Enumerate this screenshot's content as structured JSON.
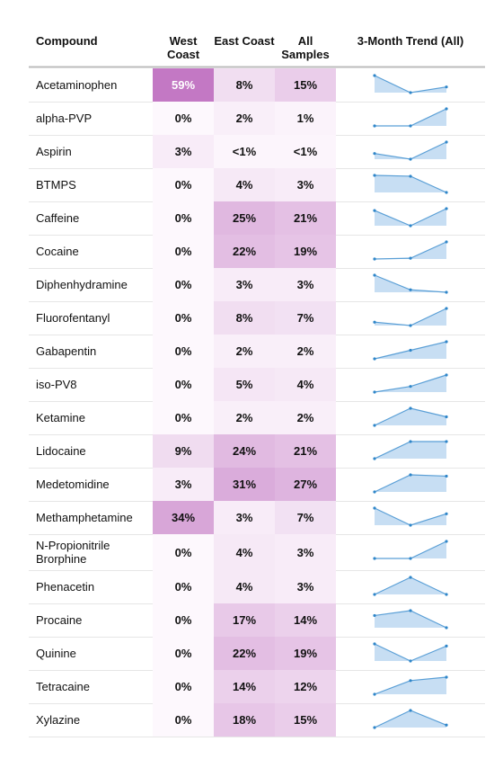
{
  "table": {
    "header": [
      "Compound",
      "West Coast",
      "East Coast",
      "All Samples",
      "3-Month Trend (All)"
    ],
    "rows": [
      {
        "compound": "Acetaminophen",
        "cells": [
          {
            "value": 59,
            "label": "59%"
          },
          {
            "value": 8,
            "label": "8%"
          },
          {
            "value": 15,
            "label": "15%"
          }
        ],
        "trend": [
          20,
          11,
          14
        ]
      },
      {
        "compound": "alpha-PVP",
        "cells": [
          {
            "value": 0,
            "label": "0%"
          },
          {
            "value": 2,
            "label": "2%"
          },
          {
            "value": 1,
            "label": "1%"
          }
        ],
        "trend": [
          0,
          0,
          3
        ]
      },
      {
        "compound": "Aspirin",
        "cells": [
          {
            "value": 3,
            "label": "3%"
          },
          {
            "value": 0.5,
            "label": "<1%"
          },
          {
            "value": 0.5,
            "label": "<1%"
          }
        ],
        "trend": [
          0.4,
          0.2,
          0.8
        ]
      },
      {
        "compound": "BTMPS",
        "cells": [
          {
            "value": 0,
            "label": "0%"
          },
          {
            "value": 4,
            "label": "4%"
          },
          {
            "value": 3,
            "label": "3%"
          }
        ],
        "trend": [
          5,
          4.8,
          1
        ]
      },
      {
        "compound": "Caffeine",
        "cells": [
          {
            "value": 0,
            "label": "0%"
          },
          {
            "value": 25,
            "label": "25%"
          },
          {
            "value": 21,
            "label": "21%"
          }
        ],
        "trend": [
          23,
          15,
          24
        ]
      },
      {
        "compound": "Cocaine",
        "cells": [
          {
            "value": 0,
            "label": "0%"
          },
          {
            "value": 22,
            "label": "22%"
          },
          {
            "value": 19,
            "label": "19%"
          }
        ],
        "trend": [
          14,
          14.5,
          25
        ]
      },
      {
        "compound": "Diphenhydramine",
        "cells": [
          {
            "value": 0,
            "label": "0%"
          },
          {
            "value": 3,
            "label": "3%"
          },
          {
            "value": 3,
            "label": "3%"
          }
        ],
        "trend": [
          5,
          2,
          1.5
        ]
      },
      {
        "compound": "Fluorofentanyl",
        "cells": [
          {
            "value": 0,
            "label": "0%"
          },
          {
            "value": 8,
            "label": "8%"
          },
          {
            "value": 7,
            "label": "7%"
          }
        ],
        "trend": [
          6,
          5,
          10
        ]
      },
      {
        "compound": "Gabapentin",
        "cells": [
          {
            "value": 0,
            "label": "0%"
          },
          {
            "value": 2,
            "label": "2%"
          },
          {
            "value": 2,
            "label": "2%"
          }
        ],
        "trend": [
          1,
          2,
          3
        ]
      },
      {
        "compound": "iso-PV8",
        "cells": [
          {
            "value": 0,
            "label": "0%"
          },
          {
            "value": 5,
            "label": "5%"
          },
          {
            "value": 4,
            "label": "4%"
          }
        ],
        "trend": [
          2,
          3,
          5
        ]
      },
      {
        "compound": "Ketamine",
        "cells": [
          {
            "value": 0,
            "label": "0%"
          },
          {
            "value": 2,
            "label": "2%"
          },
          {
            "value": 2,
            "label": "2%"
          }
        ],
        "trend": [
          1,
          3,
          2
        ]
      },
      {
        "compound": "Lidocaine",
        "cells": [
          {
            "value": 9,
            "label": "9%"
          },
          {
            "value": 24,
            "label": "24%"
          },
          {
            "value": 21,
            "label": "21%"
          }
        ],
        "trend": [
          15,
          24,
          24
        ]
      },
      {
        "compound": "Medetomidine",
        "cells": [
          {
            "value": 3,
            "label": "3%"
          },
          {
            "value": 31,
            "label": "31%"
          },
          {
            "value": 27,
            "label": "27%"
          }
        ],
        "trend": [
          18,
          31,
          30
        ]
      },
      {
        "compound": "Methamphetamine",
        "cells": [
          {
            "value": 34,
            "label": "34%"
          },
          {
            "value": 3,
            "label": "3%"
          },
          {
            "value": 7,
            "label": "7%"
          }
        ],
        "trend": [
          10,
          4,
          8
        ]
      },
      {
        "compound": "N-Propionitrile Brorphine",
        "cells": [
          {
            "value": 0,
            "label": "0%"
          },
          {
            "value": 4,
            "label": "4%"
          },
          {
            "value": 3,
            "label": "3%"
          }
        ],
        "trend": [
          2,
          2,
          5
        ]
      },
      {
        "compound": "Phenacetin",
        "cells": [
          {
            "value": 0,
            "label": "0%"
          },
          {
            "value": 4,
            "label": "4%"
          },
          {
            "value": 3,
            "label": "3%"
          }
        ],
        "trend": [
          2,
          4,
          2
        ]
      },
      {
        "compound": "Procaine",
        "cells": [
          {
            "value": 0,
            "label": "0%"
          },
          {
            "value": 17,
            "label": "17%"
          },
          {
            "value": 14,
            "label": "14%"
          }
        ],
        "trend": [
          14,
          16,
          9
        ]
      },
      {
        "compound": "Quinine",
        "cells": [
          {
            "value": 0,
            "label": "0%"
          },
          {
            "value": 22,
            "label": "22%"
          },
          {
            "value": 19,
            "label": "19%"
          }
        ],
        "trend": [
          20,
          12,
          19
        ]
      },
      {
        "compound": "Tetracaine",
        "cells": [
          {
            "value": 0,
            "label": "0%"
          },
          {
            "value": 14,
            "label": "14%"
          },
          {
            "value": 12,
            "label": "12%"
          }
        ],
        "trend": [
          8,
          12,
          13
        ]
      },
      {
        "compound": "Xylazine",
        "cells": [
          {
            "value": 0,
            "label": "0%"
          },
          {
            "value": 18,
            "label": "18%"
          },
          {
            "value": 15,
            "label": "15%"
          }
        ],
        "trend": [
          12,
          19,
          13
        ]
      }
    ]
  }
}
